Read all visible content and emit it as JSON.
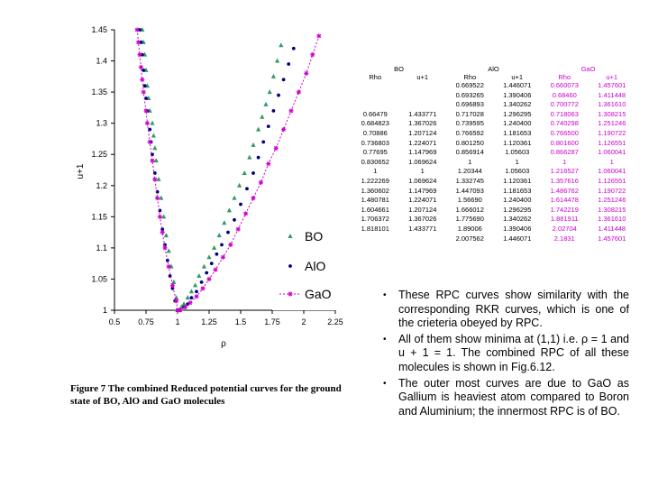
{
  "chart_data": {
    "type": "scatter",
    "title": "",
    "xlabel": "ρ",
    "ylabel": "u+1",
    "xlim": [
      0.5,
      2.25
    ],
    "ylim": [
      1,
      1.45
    ],
    "xticks": [
      "0.5",
      "0.75",
      "1",
      "1.25",
      "1.5",
      "1.75",
      "2",
      "2.25"
    ],
    "yticks": [
      "1",
      "1.05",
      "1.1",
      "1.15",
      "1.2",
      "1.25",
      "1.3",
      "1.35",
      "1.4",
      "1.45"
    ],
    "legend_position": "right",
    "grid": false,
    "series": [
      {
        "name": "BO",
        "marker": "triangle",
        "color": "#339966",
        "x": [
          0.72,
          0.73,
          0.74,
          0.75,
          0.76,
          0.77,
          0.78,
          0.8,
          0.81,
          0.82,
          0.83,
          0.85,
          0.87,
          0.89,
          0.91,
          0.93,
          0.95,
          0.97,
          0.99,
          1.0,
          1.01,
          1.03,
          1.05,
          1.08,
          1.11,
          1.14,
          1.17,
          1.21,
          1.25,
          1.29,
          1.33,
          1.37,
          1.41,
          1.45,
          1.49,
          1.53,
          1.57,
          1.6,
          1.64,
          1.67,
          1.7,
          1.73,
          1.76,
          1.79,
          1.82
        ],
        "y": [
          1.45,
          1.43,
          1.41,
          1.385,
          1.36,
          1.34,
          1.32,
          1.3,
          1.28,
          1.26,
          1.24,
          1.21,
          1.18,
          1.15,
          1.12,
          1.095,
          1.07,
          1.045,
          1.02,
          1.0,
          1.0,
          1.005,
          1.01,
          1.02,
          1.03,
          1.04,
          1.055,
          1.07,
          1.085,
          1.1,
          1.12,
          1.14,
          1.16,
          1.18,
          1.2,
          1.22,
          1.245,
          1.265,
          1.29,
          1.31,
          1.33,
          1.35,
          1.375,
          1.4,
          1.425
        ]
      },
      {
        "name": "AlO",
        "marker": "circle",
        "color": "#000080",
        "x": [
          0.7,
          0.71,
          0.72,
          0.73,
          0.74,
          0.75,
          0.76,
          0.78,
          0.79,
          0.8,
          0.82,
          0.84,
          0.86,
          0.88,
          0.9,
          0.92,
          0.94,
          0.96,
          0.98,
          1.0,
          1.02,
          1.05,
          1.08,
          1.11,
          1.15,
          1.19,
          1.23,
          1.27,
          1.31,
          1.35,
          1.4,
          1.45,
          1.5,
          1.55,
          1.6,
          1.64,
          1.68,
          1.72,
          1.76,
          1.8,
          1.84,
          1.88,
          1.92
        ],
        "y": [
          1.45,
          1.43,
          1.41,
          1.385,
          1.36,
          1.34,
          1.32,
          1.29,
          1.27,
          1.25,
          1.22,
          1.19,
          1.16,
          1.13,
          1.105,
          1.08,
          1.055,
          1.035,
          1.015,
          1.0,
          1.0,
          1.005,
          1.01,
          1.02,
          1.03,
          1.045,
          1.06,
          1.075,
          1.09,
          1.105,
          1.125,
          1.145,
          1.17,
          1.195,
          1.22,
          1.245,
          1.27,
          1.295,
          1.32,
          1.345,
          1.37,
          1.395,
          1.42
        ]
      },
      {
        "name": "GaO",
        "marker": "asterisk",
        "color": "#cc00cc",
        "x": [
          0.68,
          0.69,
          0.7,
          0.71,
          0.72,
          0.73,
          0.75,
          0.76,
          0.78,
          0.8,
          0.82,
          0.84,
          0.86,
          0.88,
          0.9,
          0.93,
          0.96,
          0.99,
          1.0,
          1.02,
          1.06,
          1.1,
          1.15,
          1.2,
          1.25,
          1.3,
          1.36,
          1.42,
          1.48,
          1.54,
          1.6,
          1.66,
          1.72,
          1.78,
          1.84,
          1.9,
          1.96,
          2.02,
          2.07,
          2.12
        ],
        "y": [
          1.45,
          1.43,
          1.41,
          1.39,
          1.37,
          1.35,
          1.32,
          1.3,
          1.27,
          1.24,
          1.21,
          1.18,
          1.15,
          1.125,
          1.1,
          1.07,
          1.04,
          1.015,
          1.0,
          1.0,
          1.005,
          1.012,
          1.022,
          1.035,
          1.05,
          1.065,
          1.085,
          1.105,
          1.13,
          1.155,
          1.18,
          1.205,
          1.235,
          1.26,
          1.29,
          1.32,
          1.35,
          1.38,
          1.41,
          1.44
        ]
      }
    ]
  },
  "table": {
    "group_headers": [
      "BO",
      "AlO",
      "GaO"
    ],
    "column_headers": [
      "Rho",
      "u+1",
      "Rho",
      "u+1",
      "Rho",
      "u+1"
    ],
    "bo_rho": [
      "0.66479",
      "0.684823",
      "0.70886",
      "0.736803",
      "0.77695",
      "0.830652",
      "1",
      "1.222269",
      "1.360602",
      "1.480781",
      "1.604661",
      "1.706372",
      "1.818101"
    ],
    "bo_u": [
      "1.433771",
      "1.367026",
      "1.207124",
      "1.224071",
      "1.147969",
      "1.069624",
      "1",
      "1.069624",
      "1.147969",
      "1.224071",
      "1.207124",
      "1.367026",
      "1.433771"
    ],
    "alo_rho": [
      "0.669522",
      "0.693265",
      "0.696893",
      "0.717028",
      "0.739595",
      "0.766592",
      "0.801250",
      "0.856914",
      "1",
      "1.20344",
      "1.332745",
      "1.447093",
      "1.56690",
      "1.666012",
      "1.775690",
      "1.89006",
      "2.007562"
    ],
    "alo_u": [
      "1.446071",
      "1.390406",
      "1.340262",
      "1.296295",
      "1.240400",
      "1.181653",
      "1.120361",
      "1.05603",
      "1",
      "1.05603",
      "1.120361",
      "1.181653",
      "1.240400",
      "1.296295",
      "1.340262",
      "1.390406",
      "1.446071"
    ],
    "gao_rho": [
      "0.660073",
      "0.68460",
      "0.700772",
      "0.718063",
      "0.740298",
      "0.766500",
      "0.801600",
      "0.866287",
      "1",
      "1.216527",
      "1.357616",
      "1.486762",
      "1.614478",
      "1.742219",
      "1.881911",
      "2.02704",
      "2.1831"
    ],
    "gao_u": [
      "1.457601",
      "1.411448",
      "1.361610",
      "1.308215",
      "1.251246",
      "1.190722",
      "1.126551",
      "1.060041",
      "1",
      "1.060041",
      "1.126551",
      "1.190722",
      "1.251246",
      "1.308215",
      "1.361610",
      "1.411448",
      "1.457601"
    ]
  },
  "caption": "Figure 7 The combined Reduced potential curves for the ground state of BO, AlO and GaO molecules",
  "bullets": [
    "These RPC curves show similarity with the corresponding RKR curves, which is one of the crieteria obeyed by RPC.",
    "All of them show minima at (1,1) i.e. ρ = 1 and u + 1 = 1. The combined RPC of all these molecules is shown in Fig.6.12.",
    "The outer most curves are due to GaO as Gallium is heaviest atom compared to Boron and Aluminium; the innermost RPC is of BO."
  ],
  "bullet_symbol": "•"
}
